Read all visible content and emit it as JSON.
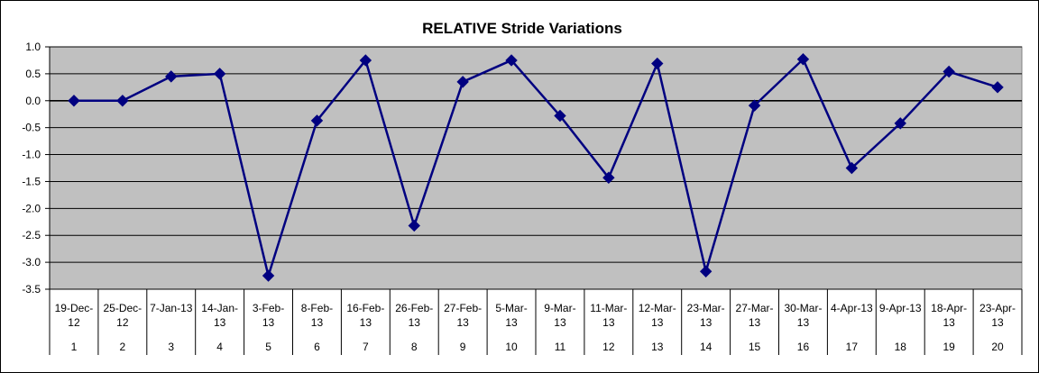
{
  "chart_data": {
    "type": "line",
    "title": "RELATIVE Stride Variations",
    "xlabel": "",
    "ylabel": "",
    "ylim": [
      -3.5,
      1.0
    ],
    "y_ticks": [
      "1.0",
      "0.5",
      "0.0",
      "-0.5",
      "-1.0",
      "-1.5",
      "-2.0",
      "-2.5",
      "-3.0",
      "-3.5"
    ],
    "grid": true,
    "legend": "none",
    "categories": [
      {
        "date_line1": "19-Dec-",
        "date_line2": "12",
        "index": "1"
      },
      {
        "date_line1": "25-Dec-",
        "date_line2": "12",
        "index": "2"
      },
      {
        "date_line1": "7-Jan-13",
        "date_line2": "",
        "index": "3"
      },
      {
        "date_line1": "14-Jan-",
        "date_line2": "13",
        "index": "4"
      },
      {
        "date_line1": "3-Feb-",
        "date_line2": "13",
        "index": "5"
      },
      {
        "date_line1": "8-Feb-",
        "date_line2": "13",
        "index": "6"
      },
      {
        "date_line1": "16-Feb-",
        "date_line2": "13",
        "index": "7"
      },
      {
        "date_line1": "26-Feb-",
        "date_line2": "13",
        "index": "8"
      },
      {
        "date_line1": "27-Feb-",
        "date_line2": "13",
        "index": "9"
      },
      {
        "date_line1": "5-Mar-",
        "date_line2": "13",
        "index": "10"
      },
      {
        "date_line1": "9-Mar-",
        "date_line2": "13",
        "index": "11"
      },
      {
        "date_line1": "11-Mar-",
        "date_line2": "13",
        "index": "12"
      },
      {
        "date_line1": "12-Mar-",
        "date_line2": "13",
        "index": "13"
      },
      {
        "date_line1": "23-Mar-",
        "date_line2": "13",
        "index": "14"
      },
      {
        "date_line1": "27-Mar-",
        "date_line2": "13",
        "index": "15"
      },
      {
        "date_line1": "30-Mar-",
        "date_line2": "13",
        "index": "16"
      },
      {
        "date_line1": "4-Apr-13",
        "date_line2": "",
        "index": "17"
      },
      {
        "date_line1": "9-Apr-13",
        "date_line2": "",
        "index": "18"
      },
      {
        "date_line1": "18-Apr-",
        "date_line2": "13",
        "index": "19"
      },
      {
        "date_line1": "23-Apr-",
        "date_line2": "13",
        "index": "20"
      }
    ],
    "series": [
      {
        "name": "",
        "color": "#000080",
        "marker": "diamond",
        "values": [
          0.0,
          0.0,
          0.45,
          0.5,
          -3.25,
          -0.37,
          0.75,
          -2.32,
          0.35,
          0.75,
          -0.28,
          -1.43,
          0.69,
          -3.17,
          -0.09,
          0.77,
          -1.25,
          -0.42,
          0.54,
          0.25
        ]
      }
    ],
    "colors": {
      "plot_area": "#c0c0c0",
      "gridline": "#000000",
      "series": "#000080"
    }
  }
}
